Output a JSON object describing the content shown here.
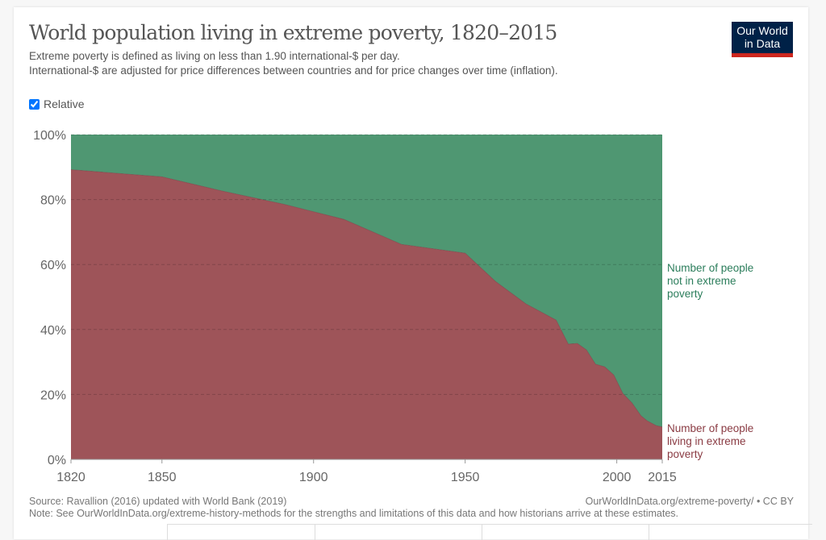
{
  "header": {
    "title": "World population living in extreme poverty, 1820–2015",
    "subtitle_1": "Extreme poverty is defined as living on less than 1.90 international-$ per day.",
    "subtitle_2": "International-$ are adjusted for price differences between countries and for price changes over time (inflation).",
    "logo_line1": "Our World",
    "logo_line2": "in Data"
  },
  "controls": {
    "relative_label": "Relative",
    "relative_checked": true
  },
  "footer": {
    "source": "Source: Ravallion (2016) updated with World Bank (2019)",
    "link": "OurWorldInData.org/extreme-poverty/ • CC BY",
    "note": "Note: See OurWorldInData.org/extreme-history-methods for the strengths and limitations of this data and how historians arrive at these estimates."
  },
  "chart_data": {
    "type": "area",
    "stacked": true,
    "title": "World population living in extreme poverty, 1820–2015",
    "xlim": [
      1820,
      2015
    ],
    "ylim": [
      0,
      100
    ],
    "x_ticks": [
      "1820",
      "1850",
      "1900",
      "1950",
      "2000",
      "2015"
    ],
    "y_ticks": [
      "0%",
      "20%",
      "40%",
      "60%",
      "80%",
      "100%"
    ],
    "grid": "horizontal dashed",
    "x": [
      1820,
      1850,
      1870,
      1890,
      1910,
      1929,
      1950,
      1960,
      1970,
      1980,
      1984,
      1987,
      1990,
      1993,
      1996,
      1999,
      2002,
      2005,
      2008,
      2010,
      2013,
      2015
    ],
    "series": [
      {
        "name": "Number of people living in extreme poverty",
        "color": "#9e5459",
        "label_color": "#8a3b43",
        "values": [
          89.2,
          87.0,
          82.6,
          78.6,
          73.9,
          66.2,
          63.5,
          54.8,
          47.9,
          42.9,
          35.5,
          35.7,
          33.7,
          29.3,
          28.5,
          26.0,
          20.3,
          17.4,
          13.4,
          11.9,
          10.4,
          10.0
        ]
      },
      {
        "name": "Number of people not in extreme poverty",
        "color": "#4f9772",
        "label_color": "#2b7d5b",
        "values": [
          10.8,
          13.0,
          17.4,
          21.4,
          26.1,
          33.8,
          36.5,
          45.2,
          52.1,
          57.1,
          64.5,
          64.3,
          66.3,
          70.7,
          71.5,
          74.0,
          79.7,
          82.6,
          86.6,
          88.1,
          89.6,
          90.0
        ]
      }
    ],
    "series_label_lines": [
      [
        "Number of people",
        "living in extreme",
        "poverty"
      ],
      [
        "Number of people",
        "not in extreme",
        "poverty"
      ]
    ]
  }
}
